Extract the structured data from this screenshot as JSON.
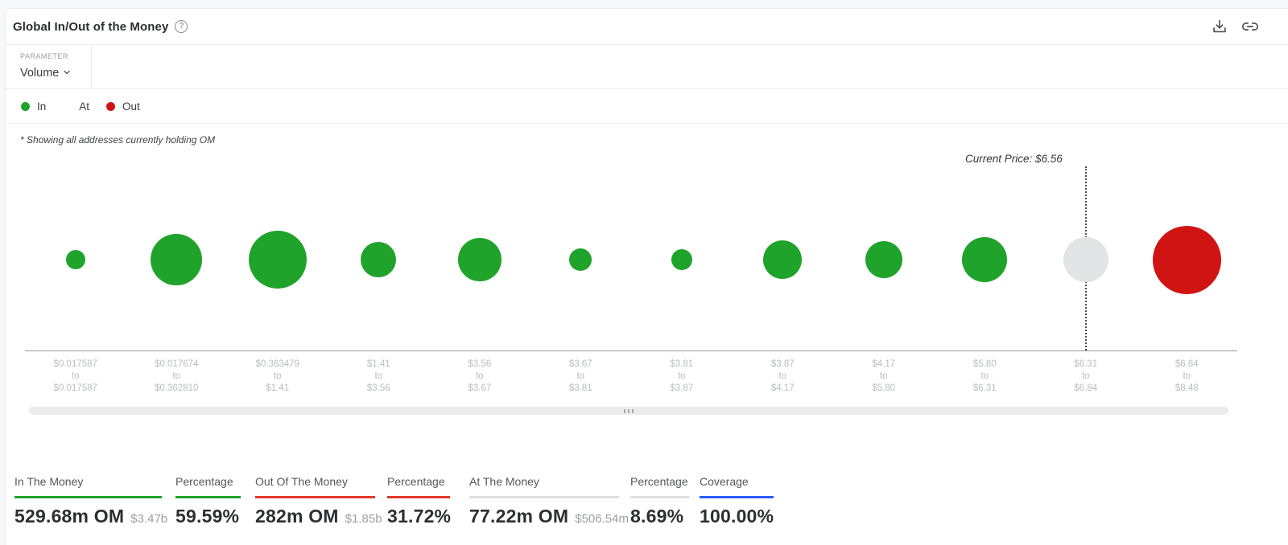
{
  "header": {
    "title": "Global In/Out of the Money",
    "help_icon": "question-mark-circle",
    "download_icon": "download",
    "share_icon": "link"
  },
  "parameter": {
    "label": "PARAMETER",
    "value": "Volume"
  },
  "legend": [
    {
      "label": "In",
      "color": "#1fa32b"
    },
    {
      "label": "At",
      "color": "#ffffff"
    },
    {
      "label": "Out",
      "color": "#d01414"
    }
  ],
  "chart_data": {
    "type": "bubble",
    "title": "Global In/Out of the Money",
    "parameter": "Volume",
    "note": "* Showing all addresses currently holding OM",
    "current_price_label": "Current Price: $6.56",
    "current_price": 6.56,
    "current_price_column_index": 10,
    "range_separator": "to",
    "legend_position": "top-left",
    "grid": false,
    "status_colors": {
      "in": "#1fa32b",
      "at": "#e3e4e5",
      "out": "#d01414"
    },
    "columns": [
      {
        "from": "$0.017587",
        "to": "$0.017587",
        "status": "in",
        "size": 24
      },
      {
        "from": "$0.017674",
        "to": "$0.362810",
        "status": "in",
        "size": 64
      },
      {
        "from": "$0.363479",
        "to": "$1.41",
        "status": "in",
        "size": 72
      },
      {
        "from": "$1.41",
        "to": "$3.56",
        "status": "in",
        "size": 44
      },
      {
        "from": "$3.56",
        "to": "$3.67",
        "status": "in",
        "size": 54
      },
      {
        "from": "$3.67",
        "to": "$3.81",
        "status": "in",
        "size": 28
      },
      {
        "from": "$3.81",
        "to": "$3.87",
        "status": "in",
        "size": 26
      },
      {
        "from": "$3.87",
        "to": "$4.17",
        "status": "in",
        "size": 48
      },
      {
        "from": "$4.17",
        "to": "$5.80",
        "status": "in",
        "size": 46
      },
      {
        "from": "$5.80",
        "to": "$6.31",
        "status": "in",
        "size": 56
      },
      {
        "from": "$6.31",
        "to": "$6.84",
        "status": "at",
        "size": 56
      },
      {
        "from": "$6.84",
        "to": "$8.48",
        "status": "out",
        "size": 85
      }
    ]
  },
  "stats": [
    {
      "id": "in-the-money",
      "label": "In The Money",
      "value": "529.68m OM",
      "sub": "$3.47b",
      "underline_color": "#21a12d"
    },
    {
      "id": "percentage-in",
      "label": "Percentage",
      "value": "59.59%",
      "sub": "",
      "underline_color": "#21a12d"
    },
    {
      "id": "out-of-the-money",
      "label": "Out Of The Money",
      "value": "282m OM",
      "sub": "$1.85b",
      "underline_color": "#e2392a"
    },
    {
      "id": "percentage-out",
      "label": "Percentage",
      "value": "31.72%",
      "sub": "",
      "underline_color": "#e2392a"
    },
    {
      "id": "at-the-money",
      "label": "At The Money",
      "value": "77.22m OM",
      "sub": "$506.54m",
      "underline_color": "#dfe0e2"
    },
    {
      "id": "percentage-at",
      "label": "Percentage",
      "value": "8.69%",
      "sub": "",
      "underline_color": "#dfe0e2"
    },
    {
      "id": "coverage",
      "label": "Coverage",
      "value": "100.00%",
      "sub": "",
      "underline_color": "#2c5bff"
    }
  ]
}
